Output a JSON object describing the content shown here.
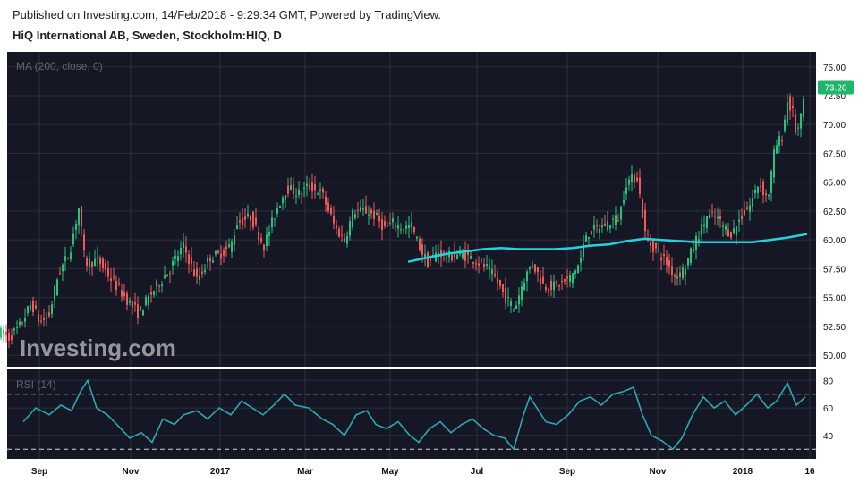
{
  "header": {
    "published": "Published on Investing.com, 14/Feb/2018 - 9:29:34 GMT, Powered by TradingView.",
    "title": "HiQ International AB, Sweden, Stockholm:HIQ, D"
  },
  "watermark": "Investing.com",
  "chart_data": {
    "type": "candlestick",
    "price_panel": {
      "indicator_label": "MA (200, close, 0)",
      "y_ticks": [
        "75.00",
        "72.50",
        "70.00",
        "67.50",
        "65.00",
        "62.50",
        "60.00",
        "57.50",
        "55.00",
        "52.50",
        "50.00"
      ],
      "ylim": [
        49.0,
        76.3
      ],
      "last_price": "73.20",
      "price_path": [
        [
          0,
          52.0
        ],
        [
          10,
          51.5
        ],
        [
          22,
          52.5
        ],
        [
          35,
          54.5
        ],
        [
          45,
          52.8
        ],
        [
          55,
          53.5
        ],
        [
          65,
          57.0
        ],
        [
          78,
          59.0
        ],
        [
          88,
          62.8
        ],
        [
          95,
          58.0
        ],
        [
          110,
          58.2
        ],
        [
          125,
          56.5
        ],
        [
          140,
          55.0
        ],
        [
          155,
          53.6
        ],
        [
          162,
          54.5
        ],
        [
          175,
          56.0
        ],
        [
          190,
          57.5
        ],
        [
          205,
          59.5
        ],
        [
          220,
          56.5
        ],
        [
          235,
          58.5
        ],
        [
          245,
          58.7
        ],
        [
          258,
          59.5
        ],
        [
          265,
          61.5
        ],
        [
          280,
          62.0
        ],
        [
          295,
          59.5
        ],
        [
          310,
          62.8
        ],
        [
          320,
          64.5
        ],
        [
          335,
          64.0
        ],
        [
          345,
          64.7
        ],
        [
          360,
          64.0
        ],
        [
          375,
          61.0
        ],
        [
          385,
          60.0
        ],
        [
          395,
          62.5
        ],
        [
          410,
          62.5
        ],
        [
          420,
          62.0
        ],
        [
          430,
          61.0
        ],
        [
          440,
          61.5
        ],
        [
          450,
          61.0
        ],
        [
          460,
          61.2
        ],
        [
          468,
          59.5
        ],
        [
          478,
          58.0
        ],
        [
          490,
          59.0
        ],
        [
          500,
          58.5
        ],
        [
          515,
          58.8
        ],
        [
          530,
          58.3
        ],
        [
          545,
          57.5
        ],
        [
          555,
          56.5
        ],
        [
          565,
          55.0
        ],
        [
          575,
          54.0
        ],
        [
          585,
          56.5
        ],
        [
          595,
          58.0
        ],
        [
          608,
          56.0
        ],
        [
          620,
          56.0
        ],
        [
          635,
          56.5
        ],
        [
          648,
          58.0
        ],
        [
          655,
          60.5
        ],
        [
          668,
          61.0
        ],
        [
          680,
          61.5
        ],
        [
          692,
          62.0
        ],
        [
          700,
          65.0
        ],
        [
          712,
          65.5
        ],
        [
          722,
          60.0
        ],
        [
          735,
          59.0
        ],
        [
          745,
          58.0
        ],
        [
          755,
          56.8
        ],
        [
          765,
          57.5
        ],
        [
          778,
          60.0
        ],
        [
          790,
          62.0
        ],
        [
          800,
          62.0
        ],
        [
          810,
          61.0
        ],
        [
          818,
          60.5
        ],
        [
          828,
          62.0
        ],
        [
          838,
          63.0
        ],
        [
          848,
          65.0
        ],
        [
          858,
          63.5
        ],
        [
          866,
          68.0
        ],
        [
          874,
          69.0
        ],
        [
          880,
          72.0
        ],
        [
          886,
          71.0
        ],
        [
          890,
          69.0
        ],
        [
          895,
          70.5
        ],
        [
          900,
          73.2
        ]
      ],
      "ma_path": [
        [
          456,
          58.1
        ],
        [
          480,
          58.5
        ],
        [
          500,
          58.8
        ],
        [
          520,
          59.0
        ],
        [
          540,
          59.2
        ],
        [
          560,
          59.3
        ],
        [
          580,
          59.2
        ],
        [
          600,
          59.2
        ],
        [
          620,
          59.2
        ],
        [
          640,
          59.3
        ],
        [
          660,
          59.5
        ],
        [
          680,
          59.6
        ],
        [
          700,
          59.9
        ],
        [
          720,
          60.1
        ],
        [
          740,
          60.0
        ],
        [
          760,
          59.9
        ],
        [
          780,
          59.8
        ],
        [
          800,
          59.8
        ],
        [
          820,
          59.8
        ],
        [
          840,
          59.8
        ],
        [
          860,
          60.0
        ],
        [
          880,
          60.2
        ],
        [
          902,
          60.5
        ]
      ]
    },
    "rsi_panel": {
      "label": "RSI (14)",
      "y_ticks": [
        "80",
        "60",
        "40"
      ],
      "ylim": [
        23,
        88
      ],
      "levels": [
        70,
        30
      ],
      "rsi_path": [
        [
          26,
          50
        ],
        [
          40,
          60
        ],
        [
          55,
          55
        ],
        [
          68,
          62
        ],
        [
          80,
          58
        ],
        [
          90,
          72
        ],
        [
          98,
          80
        ],
        [
          108,
          60
        ],
        [
          120,
          55
        ],
        [
          135,
          45
        ],
        [
          145,
          38
        ],
        [
          158,
          42
        ],
        [
          170,
          35
        ],
        [
          182,
          52
        ],
        [
          195,
          48
        ],
        [
          205,
          55
        ],
        [
          220,
          58
        ],
        [
          232,
          52
        ],
        [
          245,
          60
        ],
        [
          258,
          55
        ],
        [
          270,
          65
        ],
        [
          282,
          60
        ],
        [
          294,
          55
        ],
        [
          306,
          62
        ],
        [
          318,
          70
        ],
        [
          330,
          62
        ],
        [
          345,
          60
        ],
        [
          360,
          52
        ],
        [
          372,
          48
        ],
        [
          385,
          40
        ],
        [
          398,
          55
        ],
        [
          410,
          58
        ],
        [
          420,
          48
        ],
        [
          432,
          45
        ],
        [
          445,
          50
        ],
        [
          458,
          40
        ],
        [
          468,
          35
        ],
        [
          480,
          45
        ],
        [
          492,
          50
        ],
        [
          504,
          42
        ],
        [
          516,
          48
        ],
        [
          528,
          52
        ],
        [
          540,
          45
        ],
        [
          552,
          40
        ],
        [
          564,
          38
        ],
        [
          574,
          30
        ],
        [
          585,
          55
        ],
        [
          592,
          68
        ],
        [
          600,
          60
        ],
        [
          610,
          50
        ],
        [
          622,
          48
        ],
        [
          635,
          55
        ],
        [
          648,
          65
        ],
        [
          660,
          68
        ],
        [
          672,
          62
        ],
        [
          685,
          70
        ],
        [
          697,
          72
        ],
        [
          708,
          75
        ],
        [
          718,
          55
        ],
        [
          728,
          40
        ],
        [
          740,
          36
        ],
        [
          752,
          30
        ],
        [
          762,
          38
        ],
        [
          774,
          55
        ],
        [
          786,
          68
        ],
        [
          798,
          60
        ],
        [
          810,
          65
        ],
        [
          822,
          55
        ],
        [
          834,
          62
        ],
        [
          846,
          70
        ],
        [
          858,
          60
        ],
        [
          868,
          65
        ],
        [
          880,
          78
        ],
        [
          890,
          62
        ],
        [
          900,
          68
        ]
      ]
    },
    "x_ticks": [
      "Sep",
      "Nov",
      "2017",
      "Mar",
      "May",
      "Jul",
      "Sep",
      "Nov",
      "2018",
      "16"
    ],
    "colors": {
      "up": "#26c281",
      "down": "#ef5b5b",
      "ma": "#24d3e0",
      "rsi": "#2fa6b5",
      "background": "#151824",
      "grid": "#2a2e3b",
      "price_badge": "#21b56b"
    }
  }
}
